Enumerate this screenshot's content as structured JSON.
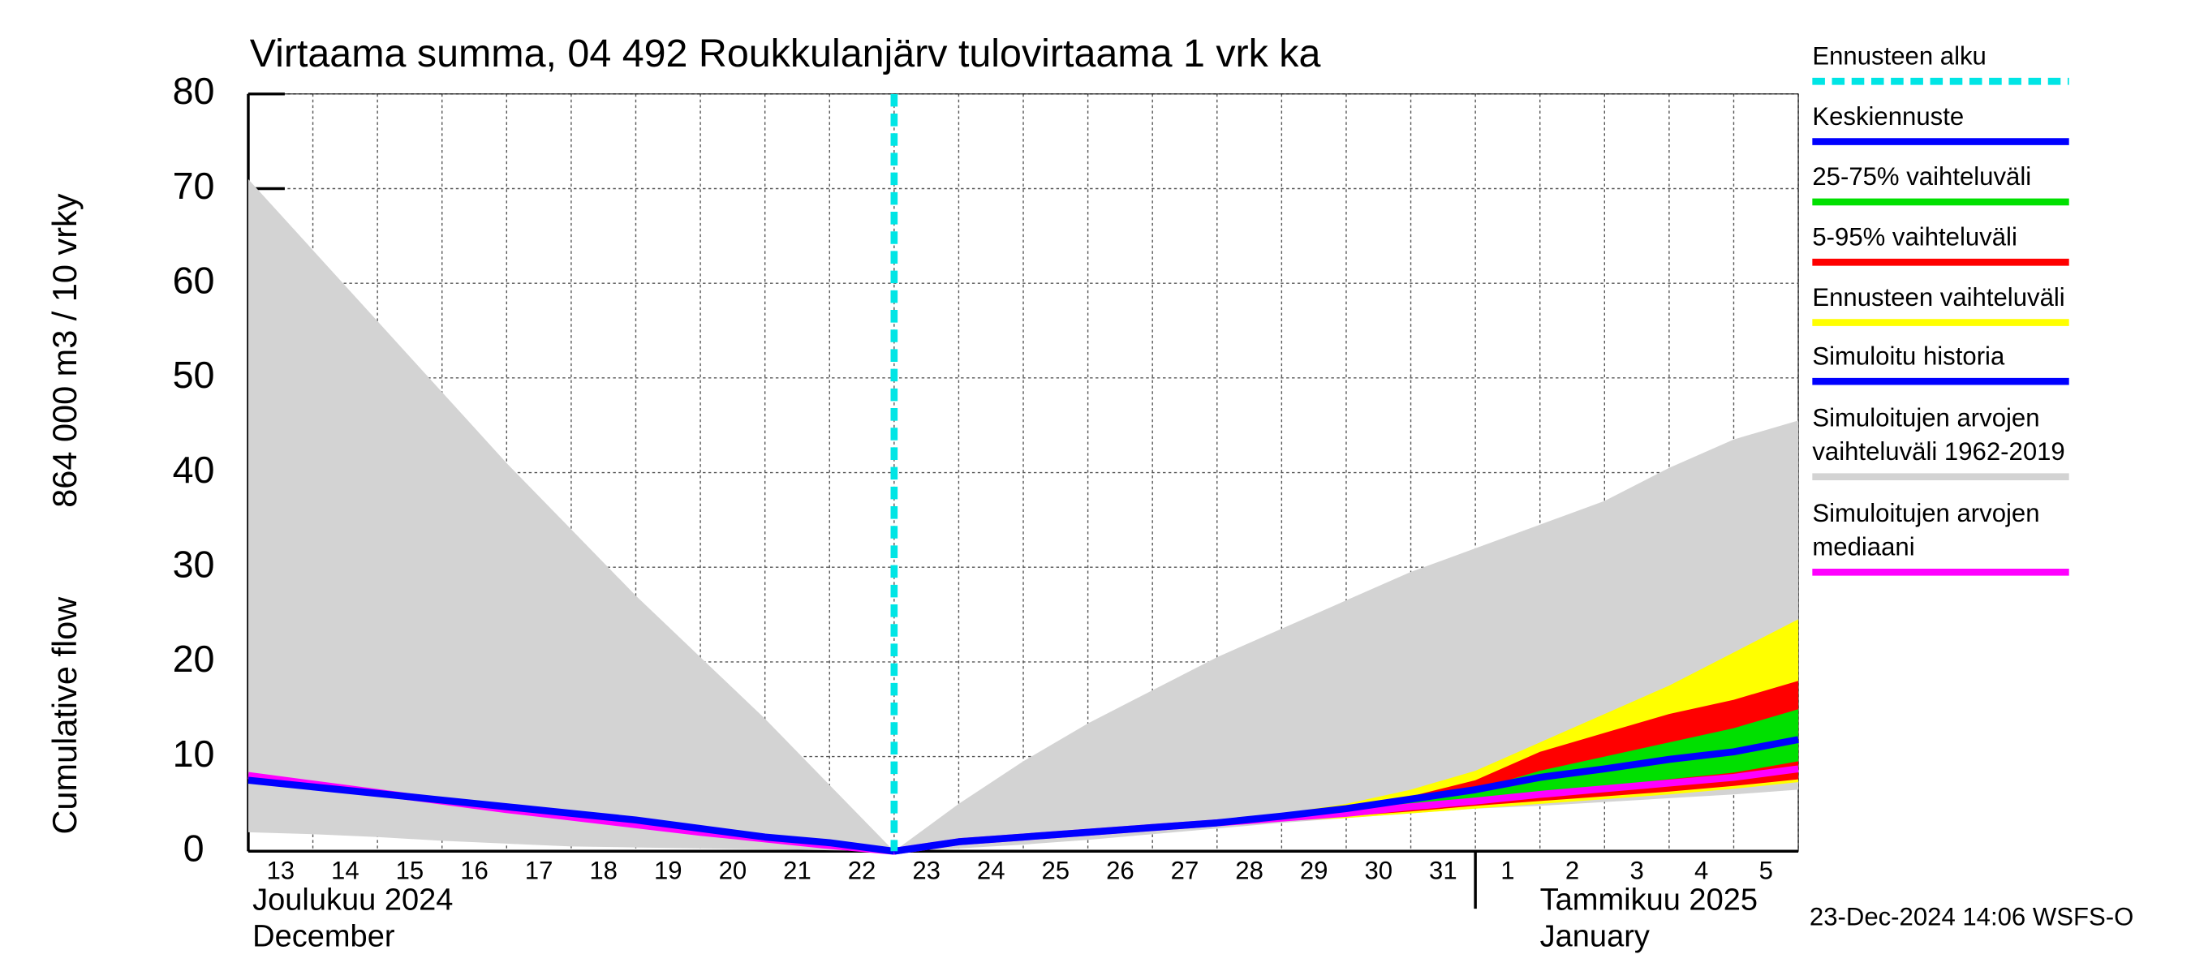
{
  "chart_data": {
    "type": "line",
    "title": "Virtaama summa, 04 492 Roukkulanjärv tulovirtaama 1 vrk ka",
    "ylabel_left": "Cumulative flow",
    "ylabel_right": "864 000 m3 / 10 vrky",
    "x": [
      "2024-12-13",
      "2024-12-14",
      "2024-12-15",
      "2024-12-16",
      "2024-12-17",
      "2024-12-18",
      "2024-12-19",
      "2024-12-20",
      "2024-12-21",
      "2024-12-22",
      "2024-12-23",
      "2024-12-24",
      "2024-12-25",
      "2024-12-26",
      "2024-12-27",
      "2024-12-28",
      "2024-12-29",
      "2024-12-30",
      "2024-12-31",
      "2025-01-01",
      "2025-01-02",
      "2025-01-03",
      "2025-01-04",
      "2025-01-05",
      "2025-01-06"
    ],
    "day_labels": [
      "13",
      "14",
      "15",
      "16",
      "17",
      "18",
      "19",
      "20",
      "21",
      "22",
      "23",
      "24",
      "25",
      "26",
      "27",
      "28",
      "29",
      "30",
      "31",
      "1",
      "2",
      "3",
      "4",
      "5"
    ],
    "month_labels": [
      {
        "text": "Joulukuu  2024",
        "text2": "December",
        "x": "2024-12-13"
      },
      {
        "text": "Tammikuu  2025",
        "text2": "January",
        "x": "2025-01-01"
      }
    ],
    "ylim": [
      0,
      80
    ],
    "yticks": [
      0,
      10,
      20,
      30,
      40,
      50,
      60,
      70,
      80
    ],
    "grid": true,
    "series": [
      {
        "name": "Ennusteen alku",
        "color": "#00e5e5",
        "kind": "vline",
        "x": "2024-12-23"
      },
      {
        "name": "Keskiennuste",
        "color": "#0000ff",
        "kind": "line",
        "values": [
          null,
          null,
          null,
          null,
          null,
          null,
          null,
          null,
          null,
          null,
          0,
          1,
          1.5,
          2,
          2.5,
          3,
          3.7,
          4.5,
          5.5,
          6.5,
          7.8,
          8.7,
          9.7,
          10.5,
          11.8
        ]
      },
      {
        "name": "25-75% vaihteluväli",
        "color": "#00e000",
        "kind": "band",
        "values": [
          null,
          null,
          null,
          null,
          null,
          null,
          null,
          null,
          null,
          null,
          0,
          1,
          1.5,
          2,
          2.5,
          3.1,
          3.7,
          4.3,
          5.3,
          6.5,
          8.5,
          10,
          11.5,
          13,
          15
        ],
        "lower": [
          null,
          null,
          null,
          null,
          null,
          null,
          null,
          null,
          null,
          null,
          0,
          1,
          1.5,
          2,
          2.5,
          3,
          3.4,
          3.9,
          4.6,
          5.4,
          6.2,
          6.9,
          7.6,
          8.3,
          9.5
        ]
      },
      {
        "name": "5-95% vaihteluväli",
        "color": "#ff0000",
        "kind": "band",
        "values": [
          null,
          null,
          null,
          null,
          null,
          null,
          null,
          null,
          null,
          null,
          0,
          1,
          1.5,
          2,
          2.5,
          3.2,
          3.8,
          4.5,
          5.8,
          7.5,
          10.5,
          12.5,
          14.5,
          16,
          18
        ],
        "lower": [
          null,
          null,
          null,
          null,
          null,
          null,
          null,
          null,
          null,
          null,
          0,
          1,
          1.5,
          2,
          2.5,
          3,
          3.3,
          3.7,
          4.2,
          4.8,
          5.3,
          5.8,
          6.3,
          6.9,
          7.6
        ]
      },
      {
        "name": "Ennusteen vaihteluväli",
        "color": "#ffff00",
        "kind": "band",
        "values": [
          null,
          null,
          null,
          null,
          null,
          null,
          null,
          null,
          null,
          null,
          0,
          1,
          1.5,
          2,
          2.6,
          3.3,
          4,
          5,
          6.5,
          8.5,
          11.5,
          14.5,
          17.5,
          21,
          24.5
        ],
        "lower": [
          null,
          null,
          null,
          null,
          null,
          null,
          null,
          null,
          null,
          null,
          0,
          1,
          1.5,
          2,
          2.5,
          2.9,
          3.2,
          3.5,
          4,
          4.5,
          5,
          5.5,
          6,
          6.6,
          7.3
        ]
      },
      {
        "name": "Simuloitu historia",
        "color": "#0000ff",
        "kind": "line",
        "values": [
          7.5,
          6.8,
          6.1,
          5.4,
          4.7,
          4,
          3.3,
          2.4,
          1.5,
          0.9,
          0,
          null,
          null,
          null,
          null,
          null,
          null,
          null,
          null,
          null,
          null,
          null,
          null,
          null,
          null
        ]
      },
      {
        "name": "Simuloitujen arvojen vaihteluväli 1962-2019",
        "color": "#d3d3d3",
        "kind": "band",
        "values": [
          71,
          63.5,
          56,
          48.5,
          41,
          34,
          27,
          20.5,
          14,
          7,
          0,
          5,
          9.5,
          13.5,
          17,
          20.5,
          23.5,
          26.5,
          29.5,
          32,
          34.5,
          37,
          40.5,
          43.5,
          45.5
        ],
        "lower": [
          2,
          1.8,
          1.5,
          1.1,
          0.8,
          0.5,
          0.4,
          0.3,
          0.2,
          0.1,
          0,
          0.3,
          0.7,
          1.2,
          1.8,
          2.4,
          3,
          3.5,
          4,
          4.5,
          4.8,
          5.2,
          5.6,
          6,
          6.5
        ]
      },
      {
        "name": "Simuloitujen arvojen mediaani",
        "color": "#ff00ff",
        "kind": "line",
        "values": [
          8,
          7.1,
          6.2,
          5.3,
          4.4,
          3.6,
          2.8,
          2,
          1.3,
          0.6,
          0,
          1,
          1.5,
          2,
          2.5,
          3,
          3.5,
          4,
          4.7,
          5.3,
          6,
          6.6,
          7.2,
          7.8,
          8.7
        ]
      }
    ],
    "footer": "23-Dec-2024 14:06 WSFS-O"
  }
}
